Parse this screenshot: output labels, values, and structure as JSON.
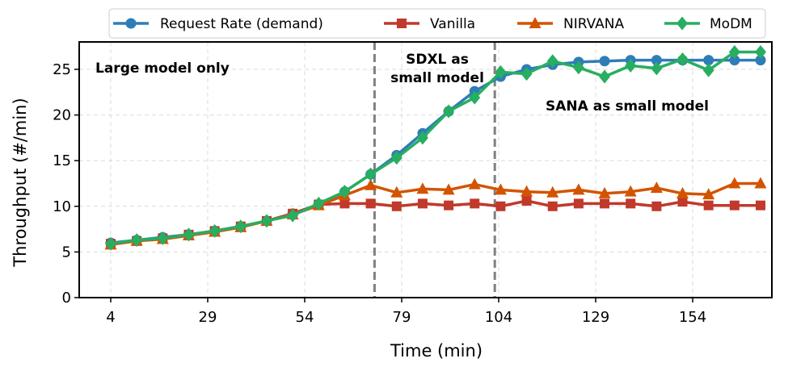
{
  "chart_data": {
    "type": "line",
    "xlabel": "Time (min)",
    "ylabel": "Throughput (#/min)",
    "xlim": [
      0,
      168
    ],
    "ylim": [
      0,
      28
    ],
    "xticks": [
      4,
      29,
      54,
      79,
      104,
      129,
      154
    ],
    "yticks": [
      0,
      5,
      10,
      15,
      20,
      25
    ],
    "grid": true,
    "legend_position": "top",
    "x": [
      4,
      10.7,
      17.4,
      24.1,
      30.8,
      37.5,
      44.2,
      50.9,
      57.6,
      64.3,
      71,
      77.7,
      84.4,
      91.1,
      97.8,
      104.5,
      111.2,
      117.9,
      124.6,
      131.3,
      138,
      144.7,
      151.4,
      158.1,
      164.8,
      171.5
    ],
    "series": [
      {
        "name": "Request Rate (demand)",
        "color": "#2e7db8",
        "marker": "circle",
        "values": [
          6.0,
          6.3,
          6.6,
          6.9,
          7.3,
          7.8,
          8.4,
          9.2,
          10.2,
          11.6,
          13.5,
          15.6,
          18.0,
          20.4,
          22.6,
          24.2,
          25.0,
          25.5,
          25.8,
          25.9,
          26.0,
          26.0,
          26.0,
          26.0,
          26.0,
          26.0
        ]
      },
      {
        "name": "Vanilla",
        "color": "#c0392b",
        "marker": "square",
        "values": [
          5.9,
          6.2,
          6.5,
          6.9,
          7.3,
          7.8,
          8.4,
          9.2,
          10.2,
          10.3,
          10.3,
          10.0,
          10.3,
          10.1,
          10.3,
          10.0,
          10.6,
          10.0,
          10.3,
          10.3,
          10.3,
          10.0,
          10.5,
          10.1,
          10.1,
          10.1
        ]
      },
      {
        "name": "NIRVANA",
        "color": "#d35400",
        "marker": "triangle",
        "values": [
          5.8,
          6.2,
          6.4,
          6.8,
          7.2,
          7.7,
          8.4,
          9.1,
          10.1,
          11.2,
          12.3,
          11.5,
          11.9,
          11.8,
          12.4,
          11.8,
          11.6,
          11.5,
          11.8,
          11.4,
          11.6,
          12.0,
          11.4,
          11.3,
          12.5,
          12.5
        ]
      },
      {
        "name": "MoDM",
        "color": "#27ae60",
        "marker": "diamond",
        "values": [
          5.9,
          6.3,
          6.5,
          6.9,
          7.3,
          7.8,
          8.4,
          9.0,
          10.3,
          11.6,
          13.5,
          15.3,
          17.5,
          20.4,
          21.9,
          24.7,
          24.5,
          25.9,
          25.2,
          24.2,
          25.4,
          25.1,
          26.1,
          24.9,
          26.9,
          26.9
        ]
      }
    ],
    "vlines": [
      72,
      103
    ],
    "annotations": [
      "Large model only",
      "SDXL as",
      "small model",
      "SANA as small model"
    ]
  }
}
